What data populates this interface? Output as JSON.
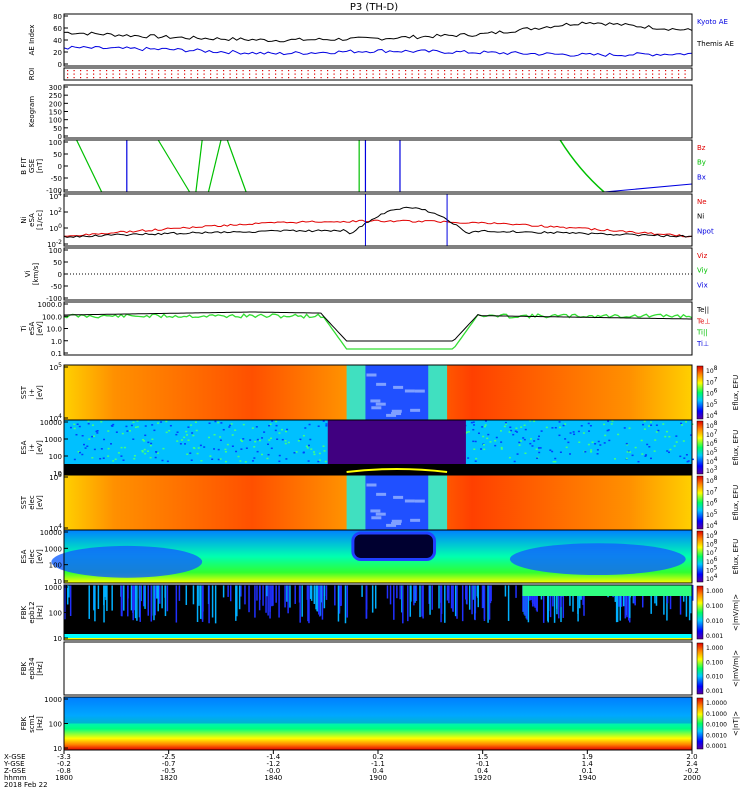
{
  "title": "P3 (TH-D)",
  "colors": {
    "black": "#000000",
    "red": "#e00000",
    "green": "#00c000",
    "blue": "#0000e0",
    "bright_green": "#33dd33"
  },
  "panels": [
    {
      "id": "ae",
      "ylabel": "AE Index",
      "ticks": [
        "80",
        "60",
        "40",
        "20",
        "0"
      ],
      "legend": [
        {
          "text": "Kyoto AE",
          "color": "#0000e0"
        },
        {
          "text": "Themis AE",
          "color": "#000000"
        }
      ]
    },
    {
      "id": "roi",
      "ylabel": "ROI",
      "ticks": [],
      "legend": []
    },
    {
      "id": "keogram",
      "ylabel": "Keogram",
      "ticks": [
        "300",
        "250",
        "200",
        "150",
        "100",
        "50",
        "0"
      ],
      "legend": []
    },
    {
      "id": "bfit",
      "ylabel": "B FIT\nGSE\n[nT]",
      "ticks": [
        "100",
        "50",
        "0",
        "-50",
        "-100"
      ],
      "legend": [
        {
          "text": "Bz",
          "color": "#e00000"
        },
        {
          "text": "By",
          "color": "#00c000"
        },
        {
          "text": "Bx",
          "color": "#0000e0"
        }
      ]
    },
    {
      "id": "ni",
      "ylabel": "Ni\neSA\n[1/cc]",
      "ticks": [
        "10^4",
        "10^2",
        "10^0",
        "10^-2"
      ],
      "legend": [
        {
          "text": "Ne",
          "color": "#e00000"
        },
        {
          "text": "Ni",
          "color": "#000000"
        },
        {
          "text": "Npot",
          "color": "#0000e0"
        }
      ]
    },
    {
      "id": "vi",
      "ylabel": "Vi\n[km/s]",
      "ticks": [
        "100",
        "50",
        "0",
        "-50",
        "-100"
      ],
      "legend": [
        {
          "text": "Viz",
          "color": "#e00000"
        },
        {
          "text": "Viy",
          "color": "#00c000"
        },
        {
          "text": "Vix",
          "color": "#0000e0"
        }
      ]
    },
    {
      "id": "ti",
      "ylabel": "Ti\neSA\n[eV]",
      "ticks": [
        "1000.0",
        "100.0",
        "10.0",
        "1.0",
        "0.1"
      ],
      "legend": [
        {
          "text": "Te||",
          "color": "#000000"
        },
        {
          "text": "Te⊥",
          "color": "#e00000"
        },
        {
          "text": "Ti||",
          "color": "#00c000"
        },
        {
          "text": "Ti⊥",
          "color": "#0000e0"
        }
      ]
    },
    {
      "id": "sst_i",
      "ylabel": "SST\ni+\n[eV]",
      "ticks": [
        "10^5",
        "10^4"
      ],
      "cbar": "Eflux, EFU",
      "cticks": [
        "10^8",
        "10^7",
        "10^6",
        "10^5",
        "10^4"
      ]
    },
    {
      "id": "esa_i",
      "ylabel": "ESA\ni+\n[eV]",
      "ticks": [
        "10000",
        "1000",
        "100",
        "10"
      ],
      "cbar": "Eflux, EFU",
      "cticks": [
        "10^8",
        "10^7",
        "10^6",
        "10^5",
        "10^4",
        "10^3"
      ]
    },
    {
      "id": "sst_e",
      "ylabel": "SST\nelec\n[eV]",
      "ticks": [
        "10^5",
        "10^4"
      ],
      "cbar": "Eflux, EFU",
      "cticks": [
        "10^8",
        "10^7",
        "10^6",
        "10^5",
        "10^4"
      ]
    },
    {
      "id": "esa_e",
      "ylabel": "ESA\nelec\n[eV]",
      "ticks": [
        "10000",
        "1000",
        "100",
        "10"
      ],
      "cbar": "Eflux, EFU",
      "cticks": [
        "10^9",
        "10^8",
        "10^7",
        "10^6",
        "10^5",
        "10^4"
      ]
    },
    {
      "id": "fbk_e12",
      "ylabel": "FBK\nepb12\n[Hz]",
      "ticks": [
        "1000",
        "100",
        "10"
      ],
      "cbar": "<|mV/m|>",
      "cticks": [
        "1.000",
        "0.100",
        "0.010",
        "0.001"
      ]
    },
    {
      "id": "fbk_e34",
      "ylabel": "FBK\nepb34\n[Hz]",
      "ticks": [],
      "cbar": "<|mV/m|>",
      "cticks": [
        "1.000",
        "0.100",
        "0.010",
        "0.001"
      ]
    },
    {
      "id": "fbk_scm",
      "ylabel": "FBK\nscm1\n[Hz]",
      "ticks": [
        "1000",
        "100",
        "10"
      ],
      "cbar": "<|nT|>",
      "cticks": [
        "1.0000",
        "0.1000",
        "0.0100",
        "0.0010",
        "0.0001"
      ]
    }
  ],
  "footer": {
    "row_labels": [
      "X-GSE",
      "Y-GSE",
      "Z-GSE",
      "hhmm",
      "2018 Feb 22"
    ],
    "columns": [
      [
        "-3.3",
        "-0.2",
        "-0.8",
        "1800"
      ],
      [
        "-2.5",
        "-0.7",
        "-0.5",
        "1820"
      ],
      [
        "-1.4",
        "-1.2",
        "-0.0",
        "1840"
      ],
      [
        "0.2",
        "-1.1",
        "0.4",
        "1900"
      ],
      [
        "1.5",
        "-0.1",
        "0.4",
        "1920"
      ],
      [
        "1.9",
        "1.4",
        "0.1",
        "1940"
      ],
      [
        "2.0",
        "2.4",
        "-0.2",
        "2000"
      ]
    ]
  },
  "chart_data": {
    "type": "line",
    "title": "P3 (TH-D)",
    "x_ticks": [
      "1800",
      "1820",
      "1840",
      "1900",
      "1920",
      "1940",
      "2000"
    ],
    "series": [
      {
        "name": "Kyoto AE",
        "values": [
          55,
          47,
          42,
          45,
          52,
          72,
          58
        ]
      },
      {
        "name": "Themis AE",
        "values": [
          30,
          27,
          20,
          25,
          22,
          18,
          20
        ]
      }
    ],
    "ylim_ae": [
      0,
      85
    ]
  }
}
